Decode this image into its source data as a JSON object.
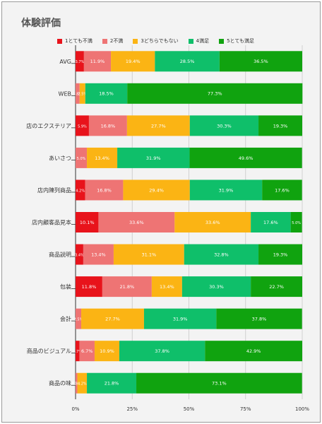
{
  "chart_data": {
    "type": "bar",
    "orientation": "horizontal",
    "stacked": true,
    "title": "体験評価",
    "categories": [
      "AVG",
      "WEB",
      "店のエクステリア",
      "あいさつ",
      "店内陳列商品",
      "店内顧客品見本",
      "商品説明",
      "包装",
      "会計",
      "商品のビジュアル",
      "商品の味"
    ],
    "series": [
      {
        "name": "1とても不満",
        "color": "#e8131b",
        "values": [
          3.7,
          0.0,
          5.9,
          0.0,
          4.2,
          10.1,
          3.4,
          11.8,
          0.0,
          1.7,
          0.0
        ],
        "labels": [
          "3.7%",
          "",
          "5.9%",
          "",
          "4.2%",
          "10.1%",
          "3.4%",
          "11.8%",
          "",
          "1.7%",
          "0.0%"
        ]
      },
      {
        "name": "2不満",
        "color": "#ee7474",
        "values": [
          11.9,
          1.8,
          16.8,
          5.0,
          16.8,
          33.6,
          13.4,
          21.8,
          2.5,
          6.7,
          0.8
        ],
        "labels": [
          "11.9%",
          "1.8%",
          "16.8%",
          "5.0%",
          "16.8%",
          "33.6%",
          "13.4%",
          "21.8%",
          "2.5%",
          "6.7%",
          "0.8%"
        ]
      },
      {
        "name": "3どちらでもない",
        "color": "#fbb414",
        "values": [
          19.4,
          2.5,
          27.7,
          13.4,
          29.4,
          33.6,
          31.1,
          13.4,
          27.7,
          10.9,
          4.2
        ],
        "labels": [
          "19.4%",
          "2.5%",
          "27.7%",
          "13.4%",
          "29.4%",
          "33.6%",
          "31.1%",
          "13.4%",
          "27.7%",
          "10.9%",
          "4.2%"
        ]
      },
      {
        "name": "4満足",
        "color": "#0fbf6a",
        "values": [
          28.5,
          18.5,
          30.3,
          31.9,
          31.9,
          17.6,
          32.8,
          30.3,
          31.9,
          37.8,
          21.8
        ],
        "labels": [
          "28.5%",
          "18.5%",
          "30.3%",
          "31.9%",
          "31.9%",
          "17.6%",
          "32.8%",
          "30.3%",
          "31.9%",
          "37.8%",
          "21.8%"
        ]
      },
      {
        "name": "5とても満足",
        "color": "#10a30f",
        "values": [
          36.5,
          77.3,
          19.3,
          49.6,
          17.6,
          5.0,
          19.3,
          22.7,
          37.8,
          42.9,
          73.1
        ],
        "labels": [
          "36.5%",
          "77.3%",
          "19.3%",
          "49.6%",
          "17.6%",
          "5.0%",
          "19.3%",
          "22.7%",
          "37.8%",
          "42.9%",
          "73.1%"
        ]
      }
    ],
    "x_ticks": [
      "0%",
      "25%",
      "50%",
      "75%",
      "100%"
    ],
    "xlim": [
      0,
      100
    ],
    "grid": true,
    "legend_position": "top"
  }
}
